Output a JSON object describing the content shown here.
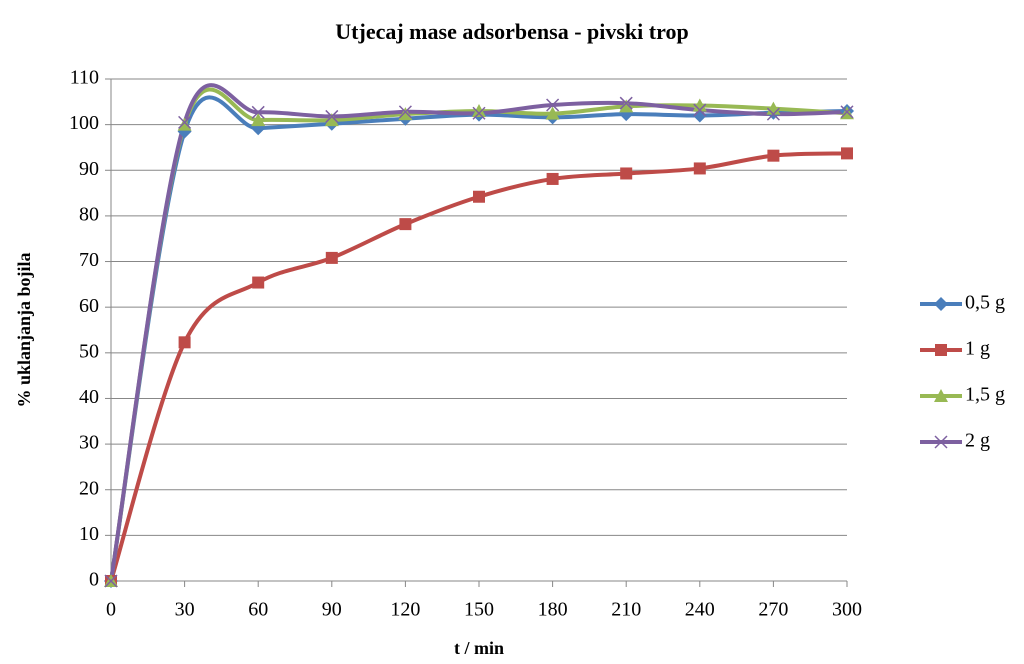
{
  "chart_data": {
    "type": "line",
    "title": "Utjecaj mase adsorbensa - pivski trop",
    "xlabel": "t / min",
    "ylabel": "%  uklanjanja bojila",
    "x": [
      0,
      30,
      60,
      90,
      120,
      150,
      180,
      210,
      240,
      270,
      300
    ],
    "xlim": [
      0,
      300
    ],
    "xticks": [
      0,
      30,
      60,
      90,
      120,
      150,
      180,
      210,
      240,
      270,
      300
    ],
    "ylim": [
      0,
      110
    ],
    "yticks": [
      0,
      10,
      20,
      30,
      40,
      50,
      60,
      70,
      80,
      90,
      100,
      110
    ],
    "grid": true,
    "smooth": true,
    "legend": "right",
    "series": [
      {
        "name": "0,5 g",
        "color": "#4a7ebb",
        "marker": "diamond",
        "values": [
          0,
          98.5,
          99.2,
          100.2,
          101.3,
          102.2,
          101.6,
          102.3,
          102,
          102.6,
          103
        ]
      },
      {
        "name": "1 g",
        "color": "#be4b48",
        "marker": "square",
        "values": [
          0,
          52.3,
          65.4,
          70.8,
          78.2,
          84.2,
          88.1,
          89.3,
          90.4,
          93.2,
          93.7
        ]
      },
      {
        "name": "1,5 g",
        "color": "#98b954",
        "marker": "triangle",
        "values": [
          0,
          100,
          101,
          101,
          102.3,
          103,
          102.4,
          104,
          104.2,
          103.5,
          102.5
        ]
      },
      {
        "name": "2 g",
        "color": "#7d60a0",
        "marker": "x",
        "values": [
          0,
          100.5,
          102.7,
          101.8,
          102.8,
          102.5,
          104.3,
          104.7,
          103.2,
          102.3,
          102.8
        ]
      }
    ]
  }
}
